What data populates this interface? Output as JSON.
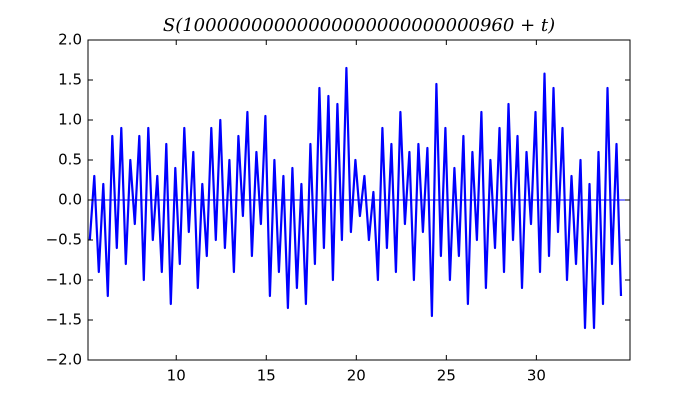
{
  "chart_data": {
    "type": "line",
    "title": "S(10000000000000000000000000960 + t)",
    "x": [
      5.2,
      5.45,
      5.7,
      5.95,
      6.2,
      6.45,
      6.7,
      6.95,
      7.2,
      7.45,
      7.7,
      7.95,
      8.2,
      8.45,
      8.7,
      8.95,
      9.2,
      9.45,
      9.7,
      9.95,
      10.2,
      10.45,
      10.7,
      10.95,
      11.2,
      11.45,
      11.7,
      11.95,
      12.2,
      12.45,
      12.7,
      12.95,
      13.2,
      13.45,
      13.7,
      13.95,
      14.2,
      14.45,
      14.7,
      14.95,
      15.2,
      15.45,
      15.7,
      15.95,
      16.2,
      16.45,
      16.7,
      16.95,
      17.2,
      17.45,
      17.7,
      17.95,
      18.2,
      18.45,
      18.7,
      18.95,
      19.2,
      19.45,
      19.7,
      19.95,
      20.2,
      20.45,
      20.7,
      20.95,
      21.2,
      21.45,
      21.7,
      21.95,
      22.2,
      22.45,
      22.7,
      22.95,
      23.2,
      23.45,
      23.7,
      23.95,
      24.2,
      24.45,
      24.7,
      24.95,
      25.2,
      25.45,
      25.7,
      25.95,
      26.2,
      26.45,
      26.7,
      26.95,
      27.2,
      27.45,
      27.7,
      27.95,
      28.2,
      28.45,
      28.7,
      28.95,
      29.2,
      29.45,
      29.7,
      29.95,
      30.2,
      30.45,
      30.7,
      30.95,
      31.2,
      31.45,
      31.7,
      31.95,
      32.2,
      32.45,
      32.7,
      32.95,
      33.2,
      33.45,
      33.7,
      33.95,
      34.2,
      34.45,
      34.7
    ],
    "series": [
      {
        "color": "#0000ff",
        "values": [
          -0.5,
          0.3,
          -0.9,
          0.2,
          -1.2,
          0.8,
          -0.6,
          0.9,
          -0.8,
          0.5,
          -0.3,
          0.8,
          -1.0,
          0.9,
          -0.5,
          0.3,
          -0.9,
          0.7,
          -1.3,
          0.4,
          -0.8,
          0.9,
          -0.4,
          0.6,
          -1.1,
          0.2,
          -0.7,
          0.9,
          -0.5,
          1.0,
          -0.6,
          0.5,
          -0.9,
          0.8,
          -0.2,
          1.1,
          -0.7,
          0.6,
          -0.3,
          1.05,
          -1.2,
          0.5,
          -0.9,
          0.3,
          -1.35,
          0.4,
          -1.1,
          0.2,
          -1.3,
          0.7,
          -0.8,
          1.4,
          -0.6,
          1.3,
          -1.0,
          1.2,
          -0.5,
          1.65,
          -0.4,
          0.5,
          -0.2,
          0.3,
          -0.5,
          0.1,
          -1.0,
          0.9,
          -0.6,
          0.7,
          -0.9,
          1.1,
          -0.3,
          0.6,
          -1.0,
          0.7,
          -0.4,
          0.65,
          -1.45,
          1.45,
          -0.7,
          0.9,
          -1.0,
          0.4,
          -0.7,
          0.8,
          -1.3,
          0.6,
          -0.5,
          1.1,
          -1.1,
          0.5,
          -0.6,
          0.9,
          -0.9,
          1.2,
          -0.5,
          0.8,
          -1.1,
          0.6,
          -0.3,
          1.1,
          -0.9,
          1.58,
          -0.7,
          1.4,
          -0.4,
          0.9,
          -1.0,
          0.3,
          -0.8,
          0.5,
          -1.6,
          0.2,
          -1.6,
          0.6,
          -1.3,
          1.4,
          -0.8,
          0.7,
          -1.2
        ]
      }
    ],
    "hline": 0,
    "xlim": [
      5.1,
      35.2
    ],
    "ylim": [
      -2,
      2
    ],
    "xticks": [
      10,
      15,
      20,
      25,
      30
    ],
    "yticks": [
      {
        "value": -2,
        "label": "−2.0"
      },
      {
        "value": -1.5,
        "label": "−1.5"
      },
      {
        "value": -1,
        "label": "−1.0"
      },
      {
        "value": -0.5,
        "label": "−0.5"
      },
      {
        "value": 0,
        "label": "0.0"
      },
      {
        "value": 0.5,
        "label": "0.5"
      },
      {
        "value": 1,
        "label": "1.0"
      },
      {
        "value": 1.5,
        "label": "1.5"
      },
      {
        "value": 2,
        "label": "2.0"
      }
    ]
  }
}
